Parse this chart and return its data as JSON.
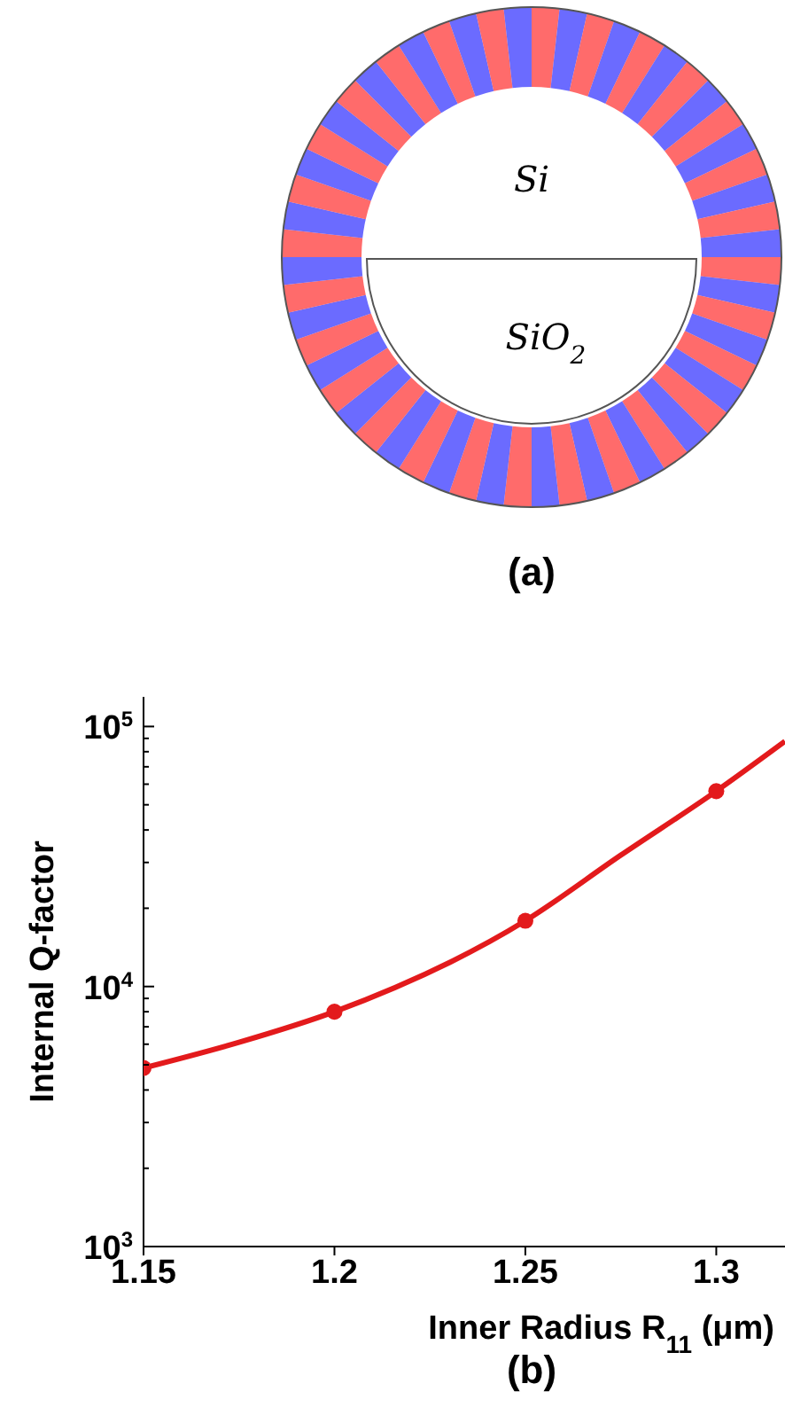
{
  "chart_data": {
    "type": "line",
    "xlabel": "Inner Radius R$_{11}$ (μm)",
    "ylabel": "Internal Q-factor",
    "annotations": [
      "Si",
      "SiO$_{2}$",
      "(a)",
      "(b)"
    ],
    "log": "y",
    "xlim": [
      1.15,
      1.318
    ],
    "xticks": [
      1.15,
      1.2,
      1.25,
      1.3
    ],
    "ylim": [
      1000,
      130000
    ],
    "yticks": [
      {
        "value": 1000,
        "label": "10$^{3}$"
      },
      {
        "value": 2000,
        "label": null
      },
      {
        "value": 3000,
        "label": null
      },
      {
        "value": 4000,
        "label": null
      },
      {
        "value": 5000,
        "label": null
      },
      {
        "value": 6000,
        "label": null
      },
      {
        "value": 7000,
        "label": null
      },
      {
        "value": 8000,
        "label": null
      },
      {
        "value": 9000,
        "label": null
      },
      {
        "value": 10000,
        "label": "10$^{4}$"
      },
      {
        "value": 20000,
        "label": null
      },
      {
        "value": 30000,
        "label": null
      },
      {
        "value": 40000,
        "label": null
      },
      {
        "value": 50000,
        "label": null
      },
      {
        "value": 60000,
        "label": null
      },
      {
        "value": 70000,
        "label": null
      },
      {
        "value": 80000,
        "label": null
      },
      {
        "value": 90000,
        "label": null
      },
      {
        "value": 100000,
        "label": "10$^{5}$"
      }
    ],
    "series": [
      {
        "color": "#e31a1c",
        "marker": "none",
        "x": [
          1.15,
          1.175,
          1.2,
          1.25,
          1.275,
          1.3,
          1.318
        ],
        "values": [
          4860,
          6100,
          8000,
          17900,
          32000,
          56400,
          87700
        ]
      },
      {
        "type": "scatter",
        "color": "#e31a1c",
        "marker": "circle",
        "x": [
          1.15,
          1.2,
          1.25,
          1.3
        ],
        "values": [
          4860,
          8000,
          17900,
          56400
        ]
      }
    ]
  }
}
